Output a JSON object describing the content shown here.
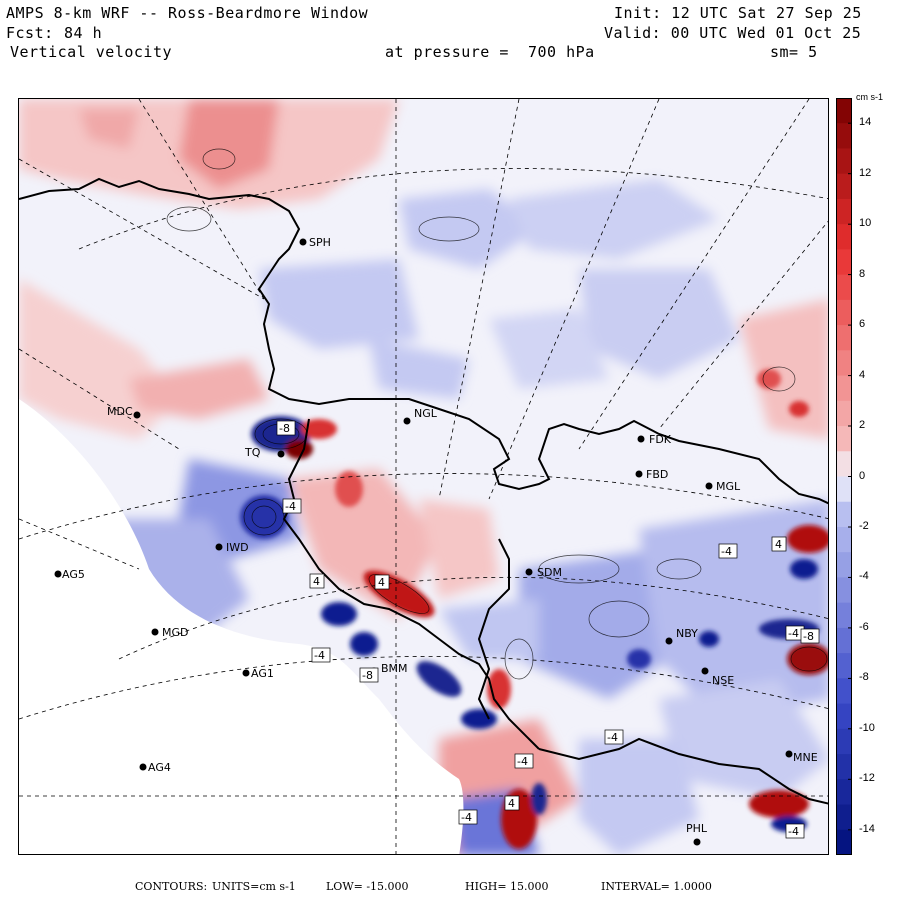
{
  "header": {
    "model": "AMPS 8-km WRF -- Ross-Beardmore Window",
    "forecast_label": "Fcst:",
    "forecast_hours": "84 h",
    "field": "Vertical velocity",
    "init": "Init: 12 UTC Sat 27 Sep 25",
    "valid": "Valid: 00 UTC Wed 01 Oct 25",
    "pressure": "at pressure =  700 hPa",
    "smoothing": "sm= 5"
  },
  "colorbar": {
    "units": "cm s-1",
    "min": -15,
    "max": 15,
    "ticks": [
      "14",
      "12",
      "10",
      "8",
      "6",
      "4",
      "2",
      "0",
      "-2",
      "-4",
      "-6",
      "-8",
      "-10",
      "-12",
      "-14"
    ],
    "colors": {
      "positive_max": "#7a0000",
      "positive_mid": "#e83030",
      "positive_low": "#f5b8b8",
      "neutral": "#f2f2fa",
      "negative_low": "#b8bff0",
      "negative_mid": "#3a49c8",
      "negative_max": "#000f7a"
    }
  },
  "stations": [
    "SPH",
    "MDC",
    "NGL",
    "TQ",
    "FDK",
    "FBD",
    "MGL",
    "IWD",
    "AG5",
    "SDM",
    "MGD",
    "NBY",
    "AG1",
    "BMM",
    "NSE",
    "AG4",
    "MNE",
    "PHL"
  ],
  "contour_labels": [
    "-4",
    "4",
    "4",
    "-4",
    "-8",
    "-4",
    "-4",
    "-4",
    "-4",
    "4",
    "-4",
    "4",
    "-4",
    "-8",
    "-8"
  ],
  "footer": {
    "contours_label": "CONTOURS:",
    "units": "UNITS=cm s-1",
    "low": "LOW= -15.000",
    "high": "HIGH= 15.000",
    "interval": "INTERVAL= 1.0000"
  }
}
